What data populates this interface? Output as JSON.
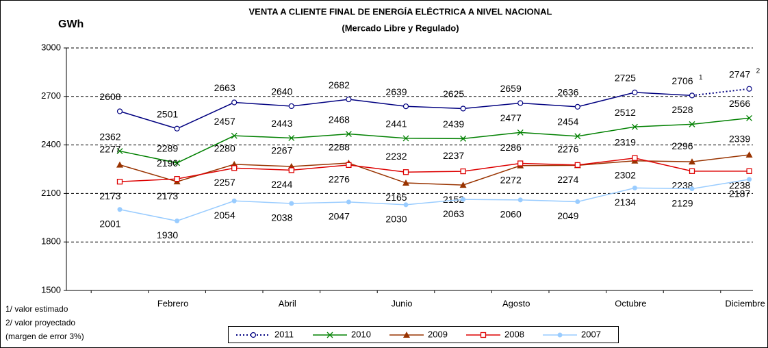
{
  "chart_data": {
    "type": "line",
    "title": "VENTA A CLIENTE FINAL DE ENERGÍA ELÉCTRICA A NIVEL NACIONAL",
    "subtitle": "(Mercado Libre y Regulado)",
    "y_label": "GWh",
    "categories": [
      null,
      "Febrero",
      null,
      "Abril",
      null,
      "Junio",
      null,
      "Agosto",
      null,
      "Octubre",
      null,
      "Diciembre"
    ],
    "series": [
      {
        "name": "2011",
        "color": "#000080",
        "values": [
          2608,
          2501,
          2663,
          2640,
          2682,
          2639,
          2625,
          2659,
          2636,
          2725,
          2706,
          2747
        ]
      },
      {
        "name": "2010",
        "color": "#008000",
        "values": [
          2362,
          2289,
          2457,
          2443,
          2468,
          2441,
          2439,
          2477,
          2454,
          2512,
          2528,
          2566
        ]
      },
      {
        "name": "2009",
        "color": "#993300",
        "values": [
          2277,
          2173,
          2280,
          2267,
          2288,
          2165,
          2152,
          2272,
          2274,
          2302,
          2296,
          2339
        ]
      },
      {
        "name": "2008",
        "color": "#dd0000",
        "values": [
          2173,
          2190,
          2257,
          2244,
          2276,
          2232,
          2237,
          2286,
          2276,
          2319,
          2238,
          2238
        ]
      },
      {
        "name": "2007",
        "color": "#99ccff",
        "values": [
          2001,
          1930,
          2054,
          2038,
          2047,
          2030,
          2063,
          2060,
          2049,
          2134,
          2129,
          2187
        ]
      }
    ],
    "annotations": [
      "1",
      "2"
    ],
    "footnotes": [
      "1/ valor estimado",
      "2/ valor proyectado",
      "(margen de error 3%)"
    ],
    "ylim": [
      1500,
      3000
    ],
    "yticks": [
      1500,
      1800,
      2100,
      2400,
      2700,
      3000
    ],
    "grid": true,
    "legend": "bottom"
  }
}
